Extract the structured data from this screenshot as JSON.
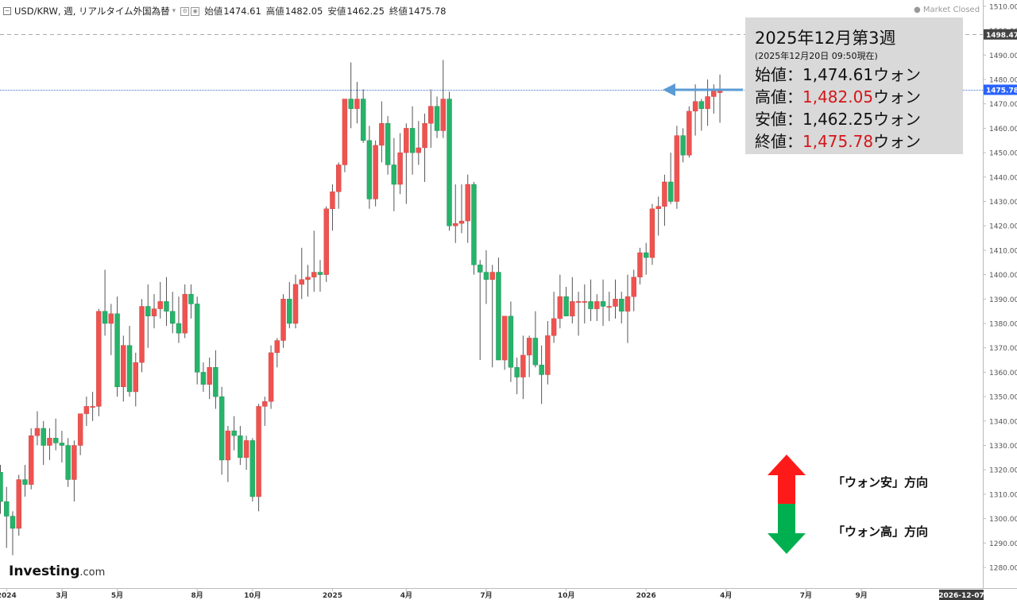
{
  "header": {
    "symbol": "USD/KRW, 週, リアルタイム外国為替",
    "open_label": "始値",
    "open_value": "1474.61",
    "high_label": "高値",
    "high_value": "1482.05",
    "low_label": "安値",
    "low_value": "1462.25",
    "close_label": "終値",
    "close_value": "1475.78",
    "market_status": "● Market Closed"
  },
  "infobox": {
    "title": "2025年12月第3週",
    "subtitle": "(2025年12月20日 09:50現在)",
    "open_label": "始値：",
    "open_value": "1,474.61",
    "open_unit": "ウォン",
    "high_label": "高値：",
    "high_value": "1,482.05",
    "high_unit": "ウォン",
    "low_label": "安値：",
    "low_value": "1,462.25",
    "low_unit": "ウォン",
    "close_label": "終値：",
    "close_value": "1,475.78",
    "close_unit": "ウォン"
  },
  "legend": {
    "up_label": "「ウォン安」方向",
    "down_label": "「ウォン高」方向",
    "up_color": "#ff1a1a",
    "down_color": "#00b050"
  },
  "logo": {
    "brand": "Investing",
    "suffix": ".com"
  },
  "colors": {
    "up": "#ef5350",
    "down": "#26b36a",
    "wick": "#555555",
    "axis_text": "#555555",
    "arrow": "#5b9bd5"
  },
  "chart_data": {
    "type": "candlestick",
    "series_name": "USD/KRW",
    "ylim": [
      1275,
      1512
    ],
    "y_ticks": [
      1280,
      1290,
      1300,
      1310,
      1320,
      1330,
      1340,
      1350,
      1360,
      1370,
      1380,
      1390,
      1400,
      1410,
      1420,
      1430,
      1440,
      1450,
      1460,
      1470,
      1480,
      1490,
      1500,
      1510
    ],
    "y_tick_labels": [
      "1280.00",
      "1290.00",
      "1300.00",
      "1310.00",
      "1320.00",
      "1330.00",
      "1340.00",
      "1350.00",
      "1360.00",
      "1370.00",
      "1380.00",
      "1390.00",
      "1400.00",
      "1410.00",
      "1420.00",
      "1430.00",
      "1440.00",
      "1450.00",
      "1460.00",
      "1470.00",
      "1480.00",
      "1490.00",
      "1500.00",
      "1510.00"
    ],
    "x_labels": [
      {
        "label": "2024",
        "week": 1
      },
      {
        "label": "3月",
        "week": 10
      },
      {
        "label": "5月",
        "week": 19
      },
      {
        "label": "8月",
        "week": 32
      },
      {
        "label": "10月",
        "week": 41
      },
      {
        "label": "2025",
        "week": 54
      },
      {
        "label": "4月",
        "week": 66
      },
      {
        "label": "7月",
        "week": 79
      },
      {
        "label": "10月",
        "week": 92
      },
      {
        "label": "2026",
        "week": 105
      },
      {
        "label": "4月",
        "week": 118
      },
      {
        "label": "7月",
        "week": 131
      },
      {
        "label": "9月",
        "week": 140
      }
    ],
    "x_end_label": "2026-12-07",
    "price_markers": [
      {
        "value": 1498.47,
        "label": "1498.47",
        "line": "dashed-gray"
      },
      {
        "value": 1475.78,
        "label": "1475.78",
        "line": "dotted-blue"
      }
    ],
    "candles": [
      [
        1319.0,
        1322.0,
        1302.0,
        1307.0
      ],
      [
        1307.0,
        1313.0,
        1288.0,
        1301.0
      ],
      [
        1301.0,
        1303.0,
        1285.0,
        1296.0
      ],
      [
        1296.0,
        1318.0,
        1293.0,
        1316.0
      ],
      [
        1316.0,
        1322.0,
        1309.0,
        1314.0
      ],
      [
        1314.0,
        1337.0,
        1312.0,
        1334.0
      ],
      [
        1334.0,
        1344.0,
        1330.0,
        1337.0
      ],
      [
        1337.0,
        1340.0,
        1322.0,
        1330.0
      ],
      [
        1330.0,
        1337.0,
        1324.0,
        1333.0
      ],
      [
        1333.0,
        1341.0,
        1328.0,
        1331.0
      ],
      [
        1331.0,
        1336.0,
        1323.0,
        1330.0
      ],
      [
        1330.0,
        1333.0,
        1313.0,
        1316.0
      ],
      [
        1316.0,
        1332.0,
        1307.0,
        1330.0
      ],
      [
        1330.0,
        1343.0,
        1326.0,
        1343.0
      ],
      [
        1343.0,
        1350.0,
        1338.0,
        1346.0
      ],
      [
        1346.0,
        1352.0,
        1340.0,
        1346.0
      ],
      [
        1346.0,
        1386.0,
        1342.0,
        1385.0
      ],
      [
        1385.0,
        1402.0,
        1375.0,
        1380.0
      ],
      [
        1380.0,
        1388.0,
        1367.0,
        1384.0
      ],
      [
        1384.0,
        1391.0,
        1350.0,
        1354.0
      ],
      [
        1354.0,
        1375.0,
        1348.0,
        1371.0
      ],
      [
        1371.0,
        1379.0,
        1350.0,
        1352.0
      ],
      [
        1352.0,
        1368.0,
        1346.0,
        1364.0
      ],
      [
        1364.0,
        1390.0,
        1360.0,
        1387.0
      ],
      [
        1387.0,
        1396.0,
        1370.0,
        1383.0
      ],
      [
        1383.0,
        1392.0,
        1378.0,
        1386.0
      ],
      [
        1386.0,
        1397.0,
        1382.0,
        1389.0
      ],
      [
        1389.0,
        1399.0,
        1379.0,
        1385.0
      ],
      [
        1385.0,
        1393.0,
        1376.0,
        1380.0
      ],
      [
        1380.0,
        1391.0,
        1372.0,
        1376.0
      ],
      [
        1376.0,
        1396.0,
        1374.0,
        1392.0
      ],
      [
        1392.0,
        1396.0,
        1382.0,
        1388.0
      ],
      [
        1388.0,
        1391.0,
        1355.0,
        1360.0
      ],
      [
        1360.0,
        1364.0,
        1352.0,
        1355.0
      ],
      [
        1355.0,
        1366.0,
        1349.0,
        1362.0
      ],
      [
        1362.0,
        1369.0,
        1345.0,
        1350.0
      ],
      [
        1350.0,
        1354.0,
        1318.0,
        1324.0
      ],
      [
        1324.0,
        1338.0,
        1315.0,
        1336.0
      ],
      [
        1336.0,
        1342.0,
        1328.0,
        1334.0
      ],
      [
        1334.0,
        1338.0,
        1322.0,
        1325.0
      ],
      [
        1325.0,
        1334.0,
        1320.0,
        1332.0
      ],
      [
        1332.0,
        1333.0,
        1307.0,
        1309.0
      ],
      [
        1309.0,
        1347.0,
        1303.0,
        1346.0
      ],
      [
        1346.0,
        1350.0,
        1338.0,
        1348.0
      ],
      [
        1348.0,
        1371.0,
        1345.0,
        1368.0
      ],
      [
        1368.0,
        1374.0,
        1362.0,
        1373.0
      ],
      [
        1373.0,
        1392.0,
        1370.0,
        1390.0
      ],
      [
        1390.0,
        1397.0,
        1378.0,
        1380.0
      ],
      [
        1380.0,
        1400.0,
        1378.0,
        1396.0
      ],
      [
        1396.0,
        1411.0,
        1390.0,
        1398.0
      ],
      [
        1398.0,
        1404.0,
        1391.0,
        1399.0
      ],
      [
        1399.0,
        1418.0,
        1393.0,
        1401.0
      ],
      [
        1401.0,
        1406.0,
        1393.0,
        1400.0
      ],
      [
        1400.0,
        1428.0,
        1397.0,
        1427.0
      ],
      [
        1427.0,
        1437.0,
        1418.0,
        1434.0
      ],
      [
        1434.0,
        1446.0,
        1427.0,
        1445.0
      ],
      [
        1445.0,
        1471.0,
        1442.0,
        1472.0
      ],
      [
        1472.0,
        1487.0,
        1460.0,
        1468.0
      ],
      [
        1468.0,
        1479.0,
        1462.0,
        1472.0
      ],
      [
        1472.0,
        1476.0,
        1454.0,
        1455.0
      ],
      [
        1455.0,
        1461.0,
        1427.0,
        1431.0
      ],
      [
        1431.0,
        1455.0,
        1428.0,
        1453.0
      ],
      [
        1453.0,
        1471.0,
        1446.0,
        1462.0
      ],
      [
        1462.0,
        1465.0,
        1441.0,
        1445.0
      ],
      [
        1445.0,
        1456.0,
        1426.0,
        1437.0
      ],
      [
        1437.0,
        1458.0,
        1433.0,
        1450.0
      ],
      [
        1450.0,
        1462.0,
        1429.0,
        1460.0
      ],
      [
        1460.0,
        1469.0,
        1441.0,
        1450.0
      ],
      [
        1450.0,
        1463.0,
        1445.0,
        1452.0
      ],
      [
        1452.0,
        1466.0,
        1438.0,
        1462.0
      ],
      [
        1462.0,
        1476.0,
        1452.0,
        1469.0
      ],
      [
        1469.0,
        1473.0,
        1456.0,
        1459.0
      ],
      [
        1459.0,
        1488.0,
        1456.0,
        1472.0
      ],
      [
        1472.0,
        1475.0,
        1418.0,
        1420.0
      ],
      [
        1420.0,
        1437.0,
        1413.0,
        1421.0
      ],
      [
        1421.0,
        1437.0,
        1417.0,
        1422.0
      ],
      [
        1422.0,
        1441.0,
        1413.0,
        1437.0
      ],
      [
        1437.0,
        1438.0,
        1400.0,
        1404.0
      ],
      [
        1404.0,
        1406.0,
        1365.0,
        1401.0
      ],
      [
        1401.0,
        1410.0,
        1388.0,
        1398.0
      ],
      [
        1398.0,
        1404.0,
        1362.0,
        1401.0
      ],
      [
        1401.0,
        1407.0,
        1366.0,
        1365.0
      ],
      [
        1365.0,
        1383.0,
        1361.0,
        1383.0
      ],
      [
        1383.0,
        1389.0,
        1356.0,
        1362.0
      ],
      [
        1362.0,
        1366.0,
        1351.0,
        1358.0
      ],
      [
        1358.0,
        1375.0,
        1349.0,
        1367.0
      ],
      [
        1367.0,
        1375.0,
        1358.0,
        1374.0
      ],
      [
        1374.0,
        1385.0,
        1362.0,
        1363.0
      ],
      [
        1363.0,
        1371.0,
        1347.0,
        1359.0
      ],
      [
        1359.0,
        1381.0,
        1355.0,
        1375.0
      ],
      [
        1375.0,
        1393.0,
        1372.0,
        1382.0
      ],
      [
        1382.0,
        1400.0,
        1378.0,
        1391.0
      ],
      [
        1391.0,
        1395.0,
        1383.0,
        1383.0
      ],
      [
        1383.0,
        1399.0,
        1380.0,
        1389.0
      ],
      [
        1389.0,
        1393.0,
        1375.0,
        1389.0
      ],
      [
        1389.0,
        1396.0,
        1380.0,
        1389.0
      ],
      [
        1389.0,
        1398.0,
        1381.0,
        1386.0
      ],
      [
        1386.0,
        1392.0,
        1381.0,
        1389.0
      ],
      [
        1389.0,
        1398.0,
        1379.0,
        1387.0
      ],
      [
        1387.0,
        1393.0,
        1381.0,
        1387.0
      ],
      [
        1387.0,
        1398.0,
        1382.0,
        1390.0
      ],
      [
        1390.0,
        1393.0,
        1380.0,
        1385.0
      ],
      [
        1385.0,
        1400.0,
        1372.0,
        1391.0
      ],
      [
        1391.0,
        1402.0,
        1385.0,
        1399.0
      ],
      [
        1399.0,
        1411.0,
        1396.0,
        1409.0
      ],
      [
        1409.0,
        1413.0,
        1400.0,
        1407.0
      ],
      [
        1407.0,
        1429.0,
        1404.0,
        1427.0
      ],
      [
        1427.0,
        1432.0,
        1416.0,
        1428.0
      ],
      [
        1428.0,
        1441.0,
        1420.0,
        1438.0
      ],
      [
        1438.0,
        1450.0,
        1429.0,
        1430.0
      ],
      [
        1430.0,
        1461.0,
        1427.0,
        1457.0
      ],
      [
        1457.0,
        1460.0,
        1446.0,
        1449.0
      ],
      [
        1449.0,
        1469.0,
        1448.0,
        1467.0
      ],
      [
        1467.0,
        1478.0,
        1457.0,
        1471.0
      ],
      [
        1471.0,
        1472.0,
        1459.0,
        1468.0
      ],
      [
        1468.0,
        1480.0,
        1461.0,
        1473.0
      ],
      [
        1473.0,
        1478.0,
        1466.0,
        1476.0
      ],
      [
        1474.61,
        1482.05,
        1462.25,
        1475.78
      ]
    ]
  }
}
